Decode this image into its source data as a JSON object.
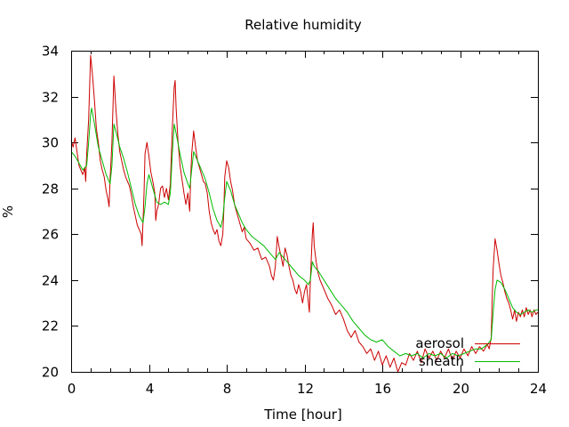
{
  "chart_data": {
    "type": "line",
    "title": "Relative humidity",
    "xlabel": "Time [hour]",
    "ylabel": "%",
    "xlim": [
      0,
      24
    ],
    "ylim": [
      20,
      34
    ],
    "x_ticks": [
      "0",
      "4",
      "8",
      "12",
      "16",
      "20",
      "24"
    ],
    "y_ticks": [
      "20",
      "22",
      "24",
      "26",
      "28",
      "30",
      "32",
      "34"
    ],
    "grid": false,
    "legend_position": "bottom-right",
    "series": [
      {
        "name": "aerosol",
        "color": "#cc0000",
        "points": [
          [
            0.0,
            30.1
          ],
          [
            0.1,
            29.8
          ],
          [
            0.2,
            30.2
          ],
          [
            0.3,
            29.6
          ],
          [
            0.4,
            29.0
          ],
          [
            0.5,
            28.8
          ],
          [
            0.6,
            28.6
          ],
          [
            0.7,
            28.9
          ],
          [
            0.75,
            28.3
          ],
          [
            0.8,
            29.5
          ],
          [
            0.9,
            31.0
          ],
          [
            1.0,
            33.8
          ],
          [
            1.1,
            32.9
          ],
          [
            1.2,
            31.8
          ],
          [
            1.3,
            30.6
          ],
          [
            1.4,
            30.0
          ],
          [
            1.5,
            29.2
          ],
          [
            1.6,
            28.8
          ],
          [
            1.7,
            28.5
          ],
          [
            1.8,
            27.9
          ],
          [
            1.9,
            27.5
          ],
          [
            1.95,
            27.2
          ],
          [
            2.0,
            28.4
          ],
          [
            2.1,
            30.0
          ],
          [
            2.2,
            32.9
          ],
          [
            2.3,
            31.5
          ],
          [
            2.4,
            30.4
          ],
          [
            2.5,
            29.6
          ],
          [
            2.6,
            29.2
          ],
          [
            2.7,
            28.8
          ],
          [
            2.8,
            28.5
          ],
          [
            2.9,
            28.3
          ],
          [
            3.0,
            28.1
          ],
          [
            3.1,
            27.7
          ],
          [
            3.2,
            27.2
          ],
          [
            3.3,
            26.8
          ],
          [
            3.4,
            26.4
          ],
          [
            3.5,
            26.2
          ],
          [
            3.6,
            26.0
          ],
          [
            3.65,
            25.5
          ],
          [
            3.7,
            26.6
          ],
          [
            3.75,
            27.8
          ],
          [
            3.8,
            29.5
          ],
          [
            3.9,
            30.0
          ],
          [
            4.0,
            29.4
          ],
          [
            4.1,
            28.7
          ],
          [
            4.2,
            28.3
          ],
          [
            4.3,
            27.8
          ],
          [
            4.35,
            26.6
          ],
          [
            4.4,
            27.0
          ],
          [
            4.5,
            27.3
          ],
          [
            4.6,
            28.0
          ],
          [
            4.7,
            28.1
          ],
          [
            4.8,
            27.6
          ],
          [
            4.9,
            28.0
          ],
          [
            5.0,
            27.5
          ],
          [
            5.1,
            28.2
          ],
          [
            5.2,
            30.6
          ],
          [
            5.3,
            32.4
          ],
          [
            5.35,
            32.7
          ],
          [
            5.4,
            31.5
          ],
          [
            5.5,
            30.0
          ],
          [
            5.6,
            29.0
          ],
          [
            5.7,
            28.4
          ],
          [
            5.8,
            27.8
          ],
          [
            5.9,
            27.3
          ],
          [
            6.0,
            27.8
          ],
          [
            6.1,
            27.0
          ],
          [
            6.15,
            28.5
          ],
          [
            6.2,
            29.5
          ],
          [
            6.3,
            30.5
          ],
          [
            6.4,
            29.8
          ],
          [
            6.5,
            29.2
          ],
          [
            6.6,
            28.9
          ],
          [
            6.7,
            28.6
          ],
          [
            6.8,
            28.3
          ],
          [
            6.9,
            28.2
          ],
          [
            7.0,
            27.8
          ],
          [
            7.1,
            27.0
          ],
          [
            7.2,
            26.5
          ],
          [
            7.3,
            26.2
          ],
          [
            7.4,
            26.0
          ],
          [
            7.5,
            26.2
          ],
          [
            7.6,
            25.7
          ],
          [
            7.7,
            25.5
          ],
          [
            7.8,
            26.0
          ],
          [
            7.85,
            27.0
          ],
          [
            7.9,
            28.5
          ],
          [
            8.0,
            29.2
          ],
          [
            8.1,
            28.9
          ],
          [
            8.2,
            28.3
          ],
          [
            8.3,
            27.9
          ],
          [
            8.4,
            27.3
          ],
          [
            8.5,
            27.0
          ],
          [
            8.6,
            26.7
          ],
          [
            8.7,
            26.4
          ],
          [
            8.8,
            26.1
          ],
          [
            8.9,
            26.3
          ],
          [
            9.0,
            25.8
          ],
          [
            9.2,
            25.6
          ],
          [
            9.4,
            25.3
          ],
          [
            9.6,
            25.4
          ],
          [
            9.8,
            24.9
          ],
          [
            10.0,
            25.0
          ],
          [
            10.2,
            24.6
          ],
          [
            10.3,
            24.2
          ],
          [
            10.4,
            24.0
          ],
          [
            10.5,
            24.6
          ],
          [
            10.6,
            25.9
          ],
          [
            10.7,
            25.4
          ],
          [
            10.8,
            25.0
          ],
          [
            10.9,
            24.6
          ],
          [
            11.0,
            25.4
          ],
          [
            11.1,
            25.1
          ],
          [
            11.2,
            24.6
          ],
          [
            11.3,
            24.2
          ],
          [
            11.4,
            24.0
          ],
          [
            11.5,
            23.6
          ],
          [
            11.6,
            23.4
          ],
          [
            11.7,
            23.8
          ],
          [
            11.8,
            23.5
          ],
          [
            11.9,
            23.0
          ],
          [
            12.0,
            23.5
          ],
          [
            12.1,
            23.8
          ],
          [
            12.2,
            23.0
          ],
          [
            12.25,
            22.6
          ],
          [
            12.3,
            24.0
          ],
          [
            12.4,
            26.0
          ],
          [
            12.45,
            26.5
          ],
          [
            12.5,
            25.5
          ],
          [
            12.6,
            24.8
          ],
          [
            12.7,
            24.3
          ],
          [
            12.8,
            24.0
          ],
          [
            12.9,
            23.8
          ],
          [
            13.0,
            23.6
          ],
          [
            13.2,
            23.2
          ],
          [
            13.4,
            22.9
          ],
          [
            13.6,
            22.5
          ],
          [
            13.8,
            22.7
          ],
          [
            14.0,
            22.3
          ],
          [
            14.2,
            21.8
          ],
          [
            14.4,
            21.5
          ],
          [
            14.6,
            21.8
          ],
          [
            14.8,
            21.3
          ],
          [
            15.0,
            21.1
          ],
          [
            15.2,
            20.8
          ],
          [
            15.4,
            21.0
          ],
          [
            15.6,
            20.5
          ],
          [
            15.8,
            20.9
          ],
          [
            16.0,
            20.3
          ],
          [
            16.2,
            20.7
          ],
          [
            16.4,
            20.2
          ],
          [
            16.6,
            20.6
          ],
          [
            16.8,
            20.0
          ],
          [
            17.0,
            20.4
          ],
          [
            17.2,
            20.3
          ],
          [
            17.4,
            20.8
          ],
          [
            17.6,
            20.5
          ],
          [
            17.8,
            20.9
          ],
          [
            18.0,
            20.4
          ],
          [
            18.2,
            21.0
          ],
          [
            18.4,
            20.6
          ],
          [
            18.6,
            20.9
          ],
          [
            18.8,
            20.5
          ],
          [
            19.0,
            20.9
          ],
          [
            19.2,
            20.6
          ],
          [
            19.4,
            21.0
          ],
          [
            19.6,
            20.5
          ],
          [
            19.8,
            20.9
          ],
          [
            20.0,
            20.6
          ],
          [
            20.2,
            21.0
          ],
          [
            20.4,
            20.7
          ],
          [
            20.6,
            21.1
          ],
          [
            20.8,
            20.8
          ],
          [
            21.0,
            21.1
          ],
          [
            21.2,
            20.9
          ],
          [
            21.4,
            21.2
          ],
          [
            21.5,
            21.0
          ],
          [
            21.6,
            21.5
          ],
          [
            21.65,
            23.2
          ],
          [
            21.7,
            24.5
          ],
          [
            21.8,
            25.8
          ],
          [
            21.9,
            25.3
          ],
          [
            22.0,
            24.7
          ],
          [
            22.1,
            24.2
          ],
          [
            22.2,
            23.9
          ],
          [
            22.3,
            23.5
          ],
          [
            22.4,
            23.2
          ],
          [
            22.5,
            23.0
          ],
          [
            22.6,
            22.7
          ],
          [
            22.7,
            22.3
          ],
          [
            22.8,
            22.7
          ],
          [
            22.9,
            22.2
          ],
          [
            23.0,
            22.6
          ],
          [
            23.1,
            22.4
          ],
          [
            23.2,
            22.7
          ],
          [
            23.3,
            22.4
          ],
          [
            23.4,
            22.8
          ],
          [
            23.5,
            22.5
          ],
          [
            23.6,
            22.7
          ],
          [
            23.7,
            22.4
          ],
          [
            23.8,
            22.7
          ],
          [
            23.9,
            22.5
          ],
          [
            24.0,
            22.6
          ]
        ]
      },
      {
        "name": "sheath",
        "color": "#00bb00",
        "points": [
          [
            0.0,
            29.6
          ],
          [
            0.2,
            29.4
          ],
          [
            0.4,
            29.1
          ],
          [
            0.6,
            28.8
          ],
          [
            0.8,
            29.0
          ],
          [
            0.9,
            30.0
          ],
          [
            1.0,
            31.2
          ],
          [
            1.05,
            31.5
          ],
          [
            1.2,
            30.8
          ],
          [
            1.4,
            29.8
          ],
          [
            1.6,
            29.2
          ],
          [
            1.8,
            28.6
          ],
          [
            2.0,
            28.2
          ],
          [
            2.1,
            29.0
          ],
          [
            2.2,
            30.8
          ],
          [
            2.3,
            30.5
          ],
          [
            2.5,
            29.8
          ],
          [
            2.7,
            29.3
          ],
          [
            2.9,
            28.7
          ],
          [
            3.1,
            28.0
          ],
          [
            3.3,
            27.3
          ],
          [
            3.5,
            26.8
          ],
          [
            3.7,
            26.5
          ],
          [
            3.8,
            27.2
          ],
          [
            3.9,
            28.2
          ],
          [
            4.0,
            28.6
          ],
          [
            4.2,
            28.0
          ],
          [
            4.4,
            27.4
          ],
          [
            4.6,
            27.3
          ],
          [
            4.8,
            27.4
          ],
          [
            5.0,
            27.3
          ],
          [
            5.1,
            27.8
          ],
          [
            5.2,
            29.5
          ],
          [
            5.3,
            30.8
          ],
          [
            5.4,
            30.4
          ],
          [
            5.6,
            29.5
          ],
          [
            5.8,
            28.7
          ],
          [
            6.0,
            28.2
          ],
          [
            6.1,
            28.0
          ],
          [
            6.2,
            28.8
          ],
          [
            6.3,
            29.6
          ],
          [
            6.5,
            29.2
          ],
          [
            6.7,
            28.8
          ],
          [
            6.9,
            28.4
          ],
          [
            7.1,
            27.8
          ],
          [
            7.3,
            27.1
          ],
          [
            7.5,
            26.6
          ],
          [
            7.7,
            26.3
          ],
          [
            7.8,
            26.7
          ],
          [
            7.9,
            27.6
          ],
          [
            8.0,
            28.3
          ],
          [
            8.2,
            27.9
          ],
          [
            8.4,
            27.3
          ],
          [
            8.6,
            26.9
          ],
          [
            8.8,
            26.5
          ],
          [
            9.0,
            26.2
          ],
          [
            9.3,
            25.9
          ],
          [
            9.6,
            25.7
          ],
          [
            9.9,
            25.5
          ],
          [
            10.2,
            25.2
          ],
          [
            10.5,
            24.9
          ],
          [
            10.7,
            25.2
          ],
          [
            10.9,
            25.0
          ],
          [
            11.1,
            24.8
          ],
          [
            11.4,
            24.5
          ],
          [
            11.7,
            24.2
          ],
          [
            12.0,
            24.0
          ],
          [
            12.2,
            23.8
          ],
          [
            12.3,
            24.0
          ],
          [
            12.4,
            24.8
          ],
          [
            12.5,
            24.6
          ],
          [
            12.7,
            24.4
          ],
          [
            13.0,
            24.0
          ],
          [
            13.3,
            23.6
          ],
          [
            13.6,
            23.2
          ],
          [
            13.9,
            22.9
          ],
          [
            14.2,
            22.6
          ],
          [
            14.5,
            22.2
          ],
          [
            14.8,
            21.9
          ],
          [
            15.1,
            21.6
          ],
          [
            15.4,
            21.4
          ],
          [
            15.7,
            21.3
          ],
          [
            16.0,
            21.4
          ],
          [
            16.3,
            21.1
          ],
          [
            16.6,
            20.9
          ],
          [
            16.9,
            20.7
          ],
          [
            17.2,
            20.8
          ],
          [
            17.5,
            20.7
          ],
          [
            17.8,
            20.8
          ],
          [
            18.1,
            20.6
          ],
          [
            18.4,
            20.8
          ],
          [
            18.7,
            20.7
          ],
          [
            19.0,
            20.8
          ],
          [
            19.3,
            20.6
          ],
          [
            19.6,
            20.8
          ],
          [
            19.9,
            20.7
          ],
          [
            20.2,
            20.8
          ],
          [
            20.5,
            20.9
          ],
          [
            20.8,
            21.0
          ],
          [
            21.1,
            21.0
          ],
          [
            21.4,
            21.2
          ],
          [
            21.6,
            21.4
          ],
          [
            21.7,
            22.6
          ],
          [
            21.8,
            23.6
          ],
          [
            21.9,
            24.0
          ],
          [
            22.1,
            23.9
          ],
          [
            22.3,
            23.6
          ],
          [
            22.5,
            23.2
          ],
          [
            22.7,
            22.8
          ],
          [
            22.9,
            22.6
          ],
          [
            23.1,
            22.5
          ],
          [
            23.3,
            22.6
          ],
          [
            23.5,
            22.7
          ],
          [
            23.7,
            22.6
          ],
          [
            23.9,
            22.7
          ],
          [
            24.0,
            22.7
          ]
        ]
      }
    ]
  }
}
